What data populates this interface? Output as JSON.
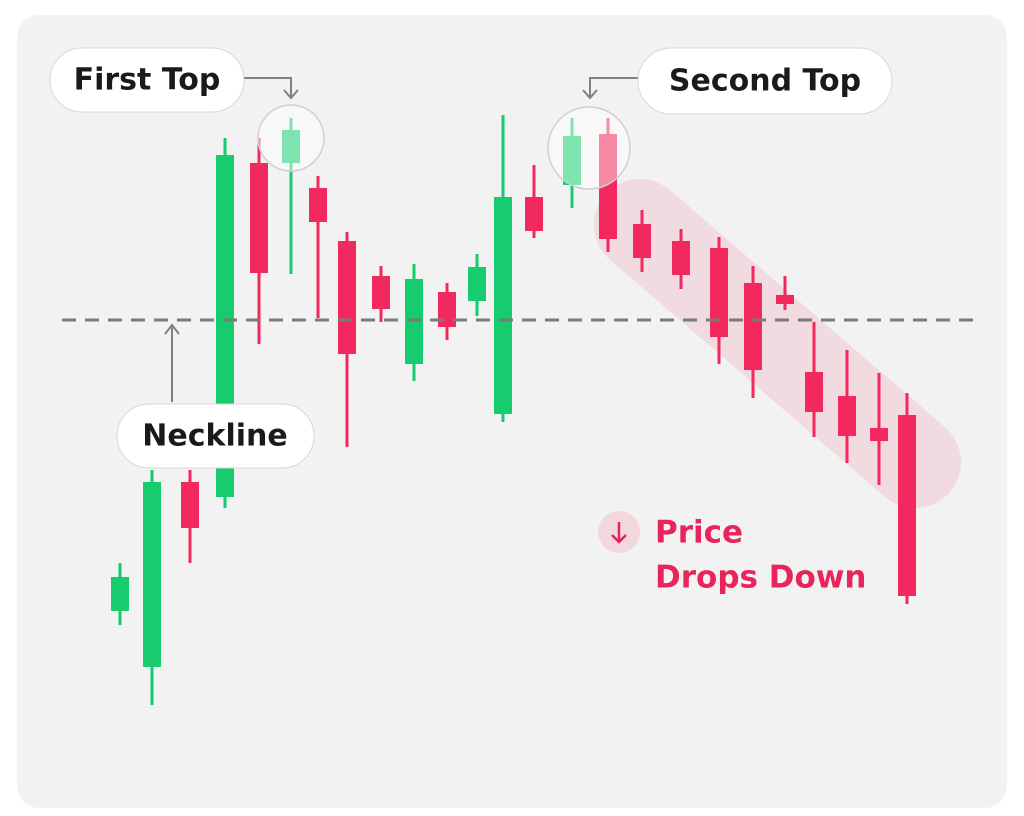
{
  "labels": {
    "first_top": "First Top",
    "second_top": "Second Top",
    "neckline": "Neckline",
    "price_drops": [
      "Price",
      "Drops Down"
    ]
  }
}
